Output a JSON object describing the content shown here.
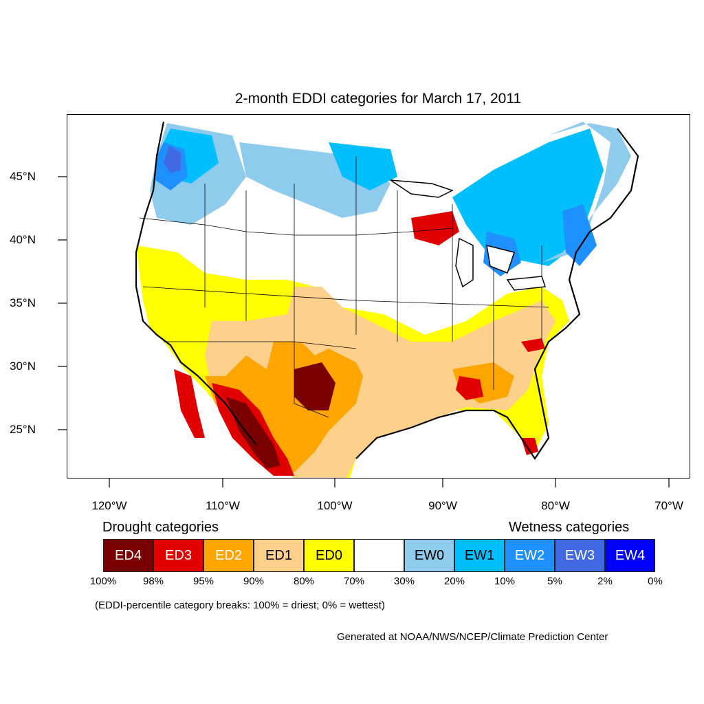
{
  "title": "2-month EDDI categories for March 17, 2011",
  "lat_labels": [
    "45°N",
    "40°N",
    "35°N",
    "30°N",
    "25°N"
  ],
  "lon_labels": [
    "120°W",
    "110°W",
    "100°W",
    "90°W",
    "80°W",
    "70°W"
  ],
  "legend": {
    "drought_heading": "Drought categories",
    "wetness_heading": "Wetness categories",
    "categories": [
      {
        "label": "ED4",
        "color": "#7a0000",
        "text_color": "#ffffff"
      },
      {
        "label": "ED3",
        "color": "#e00000",
        "text_color": "#ffffff"
      },
      {
        "label": "ED2",
        "color": "#ffa500",
        "text_color": "#ffffff"
      },
      {
        "label": "ED1",
        "color": "#fdd18c",
        "text_color": "#000000"
      },
      {
        "label": "ED0",
        "color": "#ffff00",
        "text_color": "#000000"
      },
      {
        "label": "",
        "color": "#ffffff",
        "text_color": "#000000"
      },
      {
        "label": "EW0",
        "color": "#8fcbec",
        "text_color": "#000000"
      },
      {
        "label": "EW1",
        "color": "#00bfff",
        "text_color": "#000000"
      },
      {
        "label": "EW2",
        "color": "#1e90ff",
        "text_color": "#ffffff"
      },
      {
        "label": "EW3",
        "color": "#4169e1",
        "text_color": "#ffffff"
      },
      {
        "label": "EW4",
        "color": "#0000ff",
        "text_color": "#ffffff"
      }
    ],
    "breaks": [
      "100%",
      "98%",
      "95%",
      "90%",
      "80%",
      "70%",
      "30%",
      "20%",
      "10%",
      "5%",
      "2%",
      "0%"
    ]
  },
  "note": "(EDDI-percentile category breaks: 100% = driest; 0% = wettest)",
  "credit": "Generated at NOAA/NWS/NCEP/Climate Prediction Center"
}
